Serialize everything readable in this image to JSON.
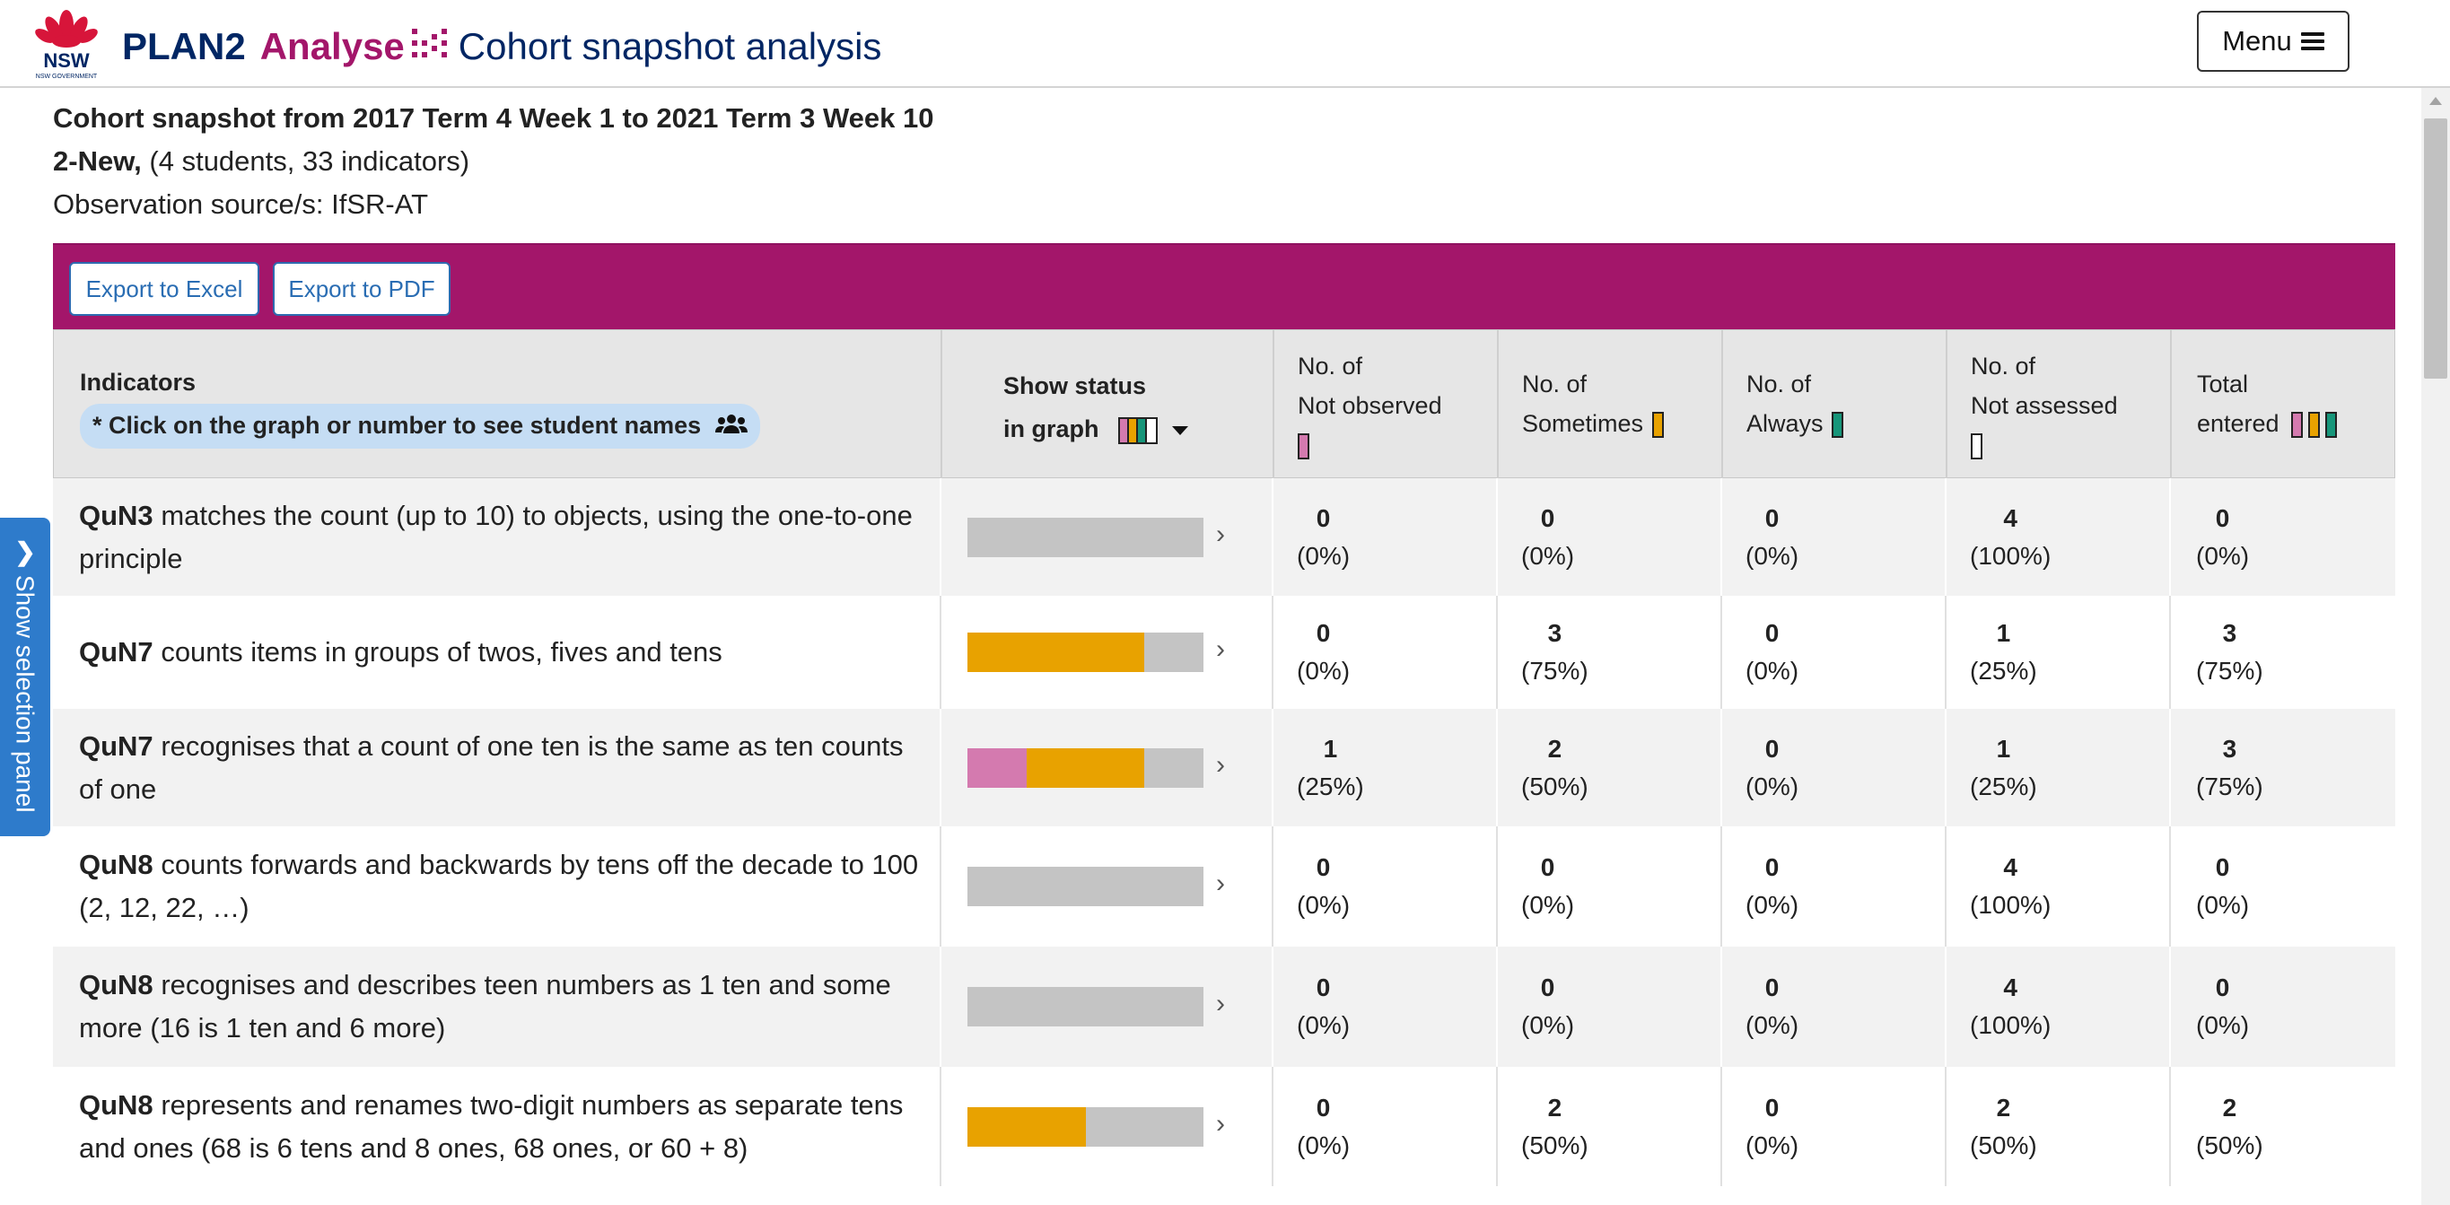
{
  "header": {
    "logo_text": "NSW GOVERNMENT",
    "app_name": "PLAN2",
    "module": "Analyse",
    "page_title": "Cohort snapshot analysis",
    "menu_label": "Menu"
  },
  "side_panel": {
    "label": "Show selection panel"
  },
  "summary": {
    "line1": "Cohort snapshot from 2017 Term 4 Week 1 to 2021 Term 3 Week 10",
    "group": "2-New,",
    "group_detail": "(4 students, 33 indicators)",
    "source": "Observation source/s: IfSR-AT"
  },
  "toolbar": {
    "export_excel": "Export to Excel",
    "export_pdf": "Export to PDF"
  },
  "columns": {
    "indicators": "Indicators",
    "hint": "* Click on the graph or number to see student names",
    "show_status_1": "Show status",
    "show_status_2": "in graph",
    "not_observed_1": "No. of",
    "not_observed_2": "Not observed",
    "sometimes_1": "No. of",
    "sometimes_2": "Sometimes",
    "always_1": "No. of",
    "always_2": "Always",
    "not_assessed_1": "No. of",
    "not_assessed_2": "Not assessed",
    "total_1": "Total",
    "total_2": "entered"
  },
  "colors": {
    "brand_navy": "#002664",
    "brand_magenta": "#a3166a",
    "not_observed": "#d47aaf",
    "sometimes": "#e8a200",
    "always": "#17967a",
    "not_assessed": "#c4c4c4",
    "side_tab": "#2e7bcb"
  },
  "rows": [
    {
      "code": "QuN3",
      "text": "matches the count (up to 10) to objects, using the one-to-one principle",
      "not_observed": {
        "n": "0",
        "p": "(0%)"
      },
      "sometimes": {
        "n": "0",
        "p": "(0%)"
      },
      "always": {
        "n": "0",
        "p": "(0%)"
      },
      "not_assessed": {
        "n": "4",
        "p": "(100%)"
      },
      "total": {
        "n": "0",
        "p": "(0%)"
      },
      "bar": {
        "not_observed": 0,
        "sometimes": 0,
        "always": 0,
        "not_assessed": 100
      }
    },
    {
      "code": "QuN7",
      "text": "counts items in groups of twos, fives and tens",
      "not_observed": {
        "n": "0",
        "p": "(0%)"
      },
      "sometimes": {
        "n": "3",
        "p": "(75%)"
      },
      "always": {
        "n": "0",
        "p": "(0%)"
      },
      "not_assessed": {
        "n": "1",
        "p": "(25%)"
      },
      "total": {
        "n": "3",
        "p": "(75%)"
      },
      "bar": {
        "not_observed": 0,
        "sometimes": 75,
        "always": 0,
        "not_assessed": 25
      }
    },
    {
      "code": "QuN7",
      "text": "recognises that a count of one ten is the same as ten counts of one",
      "not_observed": {
        "n": "1",
        "p": "(25%)"
      },
      "sometimes": {
        "n": "2",
        "p": "(50%)"
      },
      "always": {
        "n": "0",
        "p": "(0%)"
      },
      "not_assessed": {
        "n": "1",
        "p": "(25%)"
      },
      "total": {
        "n": "3",
        "p": "(75%)"
      },
      "bar": {
        "not_observed": 25,
        "sometimes": 50,
        "always": 0,
        "not_assessed": 25
      }
    },
    {
      "code": "QuN8",
      "text": "counts forwards and backwards by tens off the decade to 100 (2, 12, 22, …)",
      "not_observed": {
        "n": "0",
        "p": "(0%)"
      },
      "sometimes": {
        "n": "0",
        "p": "(0%)"
      },
      "always": {
        "n": "0",
        "p": "(0%)"
      },
      "not_assessed": {
        "n": "4",
        "p": "(100%)"
      },
      "total": {
        "n": "0",
        "p": "(0%)"
      },
      "bar": {
        "not_observed": 0,
        "sometimes": 0,
        "always": 0,
        "not_assessed": 100
      }
    },
    {
      "code": "QuN8",
      "text": "recognises and describes teen numbers as 1 ten and some more (16 is 1 ten and 6 more)",
      "not_observed": {
        "n": "0",
        "p": "(0%)"
      },
      "sometimes": {
        "n": "0",
        "p": "(0%)"
      },
      "always": {
        "n": "0",
        "p": "(0%)"
      },
      "not_assessed": {
        "n": "4",
        "p": "(100%)"
      },
      "total": {
        "n": "0",
        "p": "(0%)"
      },
      "bar": {
        "not_observed": 0,
        "sometimes": 0,
        "always": 0,
        "not_assessed": 100
      }
    },
    {
      "code": "QuN8",
      "text": "represents and renames two-digit numbers as separate tens and ones (68 is 6 tens and 8 ones, 68 ones, or 60 + 8)",
      "not_observed": {
        "n": "0",
        "p": "(0%)"
      },
      "sometimes": {
        "n": "2",
        "p": "(50%)"
      },
      "always": {
        "n": "0",
        "p": "(0%)"
      },
      "not_assessed": {
        "n": "2",
        "p": "(50%)"
      },
      "total": {
        "n": "2",
        "p": "(50%)"
      },
      "bar": {
        "not_observed": 0,
        "sometimes": 50,
        "always": 0,
        "not_assessed": 50
      }
    }
  ]
}
